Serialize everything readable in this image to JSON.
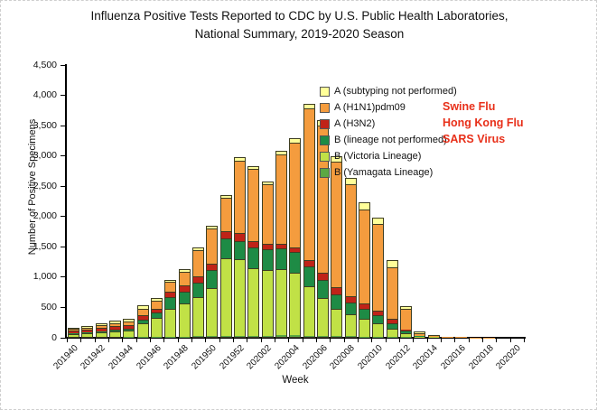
{
  "window": {
    "background": "#ffffff",
    "border_color": "#cfcfcf"
  },
  "title": {
    "line1": "Influenza Positive Tests Reported to CDC by U.S. Public Health Laboratories,",
    "line2": "National Summary, 2019-2020 Season"
  },
  "chart_data": {
    "type": "bar",
    "stacked": true,
    "title": "Influenza Positive Tests Reported to CDC by U.S. Public Health Laboratories, National Summary, 2019-2020 Season",
    "xlabel": "Week",
    "ylabel": "Number of Positive Specimens",
    "ylim": [
      0,
      4500
    ],
    "y_tick_step": 500,
    "y_tick_labels": [
      "0",
      "500",
      "1,000",
      "1,500",
      "2,000",
      "2,500",
      "3,000",
      "3,500",
      "4,000",
      "4,500"
    ],
    "grid": false,
    "legend_position": "inside-top-right",
    "categories": [
      "201940",
      "201941",
      "201942",
      "201943",
      "201944",
      "201945",
      "201946",
      "201947",
      "201948",
      "201949",
      "201950",
      "201951",
      "201952",
      "202001",
      "202002",
      "202003",
      "202004",
      "202005",
      "202006",
      "202007",
      "202008",
      "202009",
      "202010",
      "202011",
      "202012",
      "202013",
      "202014",
      "202015",
      "202016",
      "202017",
      "202018",
      "202019",
      "202020"
    ],
    "x_tick_label_every": 2,
    "x_tick_labels_shown": [
      "201940",
      "201942",
      "201944",
      "201946",
      "201948",
      "201950",
      "201952",
      "202002",
      "202004",
      "202006",
      "202008",
      "202010",
      "202012",
      "202014",
      "202016",
      "202018",
      "202020"
    ],
    "series": [
      {
        "name": "B (Yamagata Lineage)",
        "color": "#5BA843",
        "values": [
          0,
          0,
          0,
          0,
          5,
          5,
          5,
          5,
          5,
          10,
          10,
          15,
          20,
          20,
          20,
          25,
          25,
          20,
          15,
          10,
          10,
          5,
          5,
          5,
          3,
          2,
          0,
          0,
          0,
          0,
          0,
          0,
          0
        ]
      },
      {
        "name": "B (Victoria Lineage)",
        "color": "#C1E146",
        "values": [
          55,
          65,
          85,
          100,
          115,
          240,
          325,
          475,
          565,
          660,
          810,
          1300,
          1270,
          1120,
          1095,
          1100,
          1040,
          820,
          625,
          455,
          360,
          290,
          215,
          140,
          60,
          10,
          5,
          2,
          1,
          0,
          0,
          0,
          0
        ]
      },
      {
        "name": "B (lineage not performed)",
        "color": "#1E8B45",
        "values": [
          20,
          25,
          25,
          30,
          35,
          60,
          85,
          195,
          200,
          250,
          300,
          325,
          310,
          350,
          340,
          350,
          350,
          325,
          300,
          250,
          210,
          170,
          150,
          90,
          40,
          8,
          3,
          1,
          1,
          0,
          0,
          0,
          0
        ]
      },
      {
        "name": "A (H3N2)",
        "color": "#C02318",
        "values": [
          50,
          55,
          60,
          65,
          65,
          75,
          65,
          90,
          95,
          100,
          105,
          125,
          135,
          100,
          100,
          75,
          75,
          110,
          125,
          110,
          105,
          100,
          75,
          75,
          22,
          10,
          4,
          2,
          1,
          0,
          0,
          0,
          0
        ]
      },
      {
        "name": "A (H1N1)pdm09",
        "color": "#F49C3E",
        "values": [
          30,
          35,
          45,
          55,
          60,
          115,
          140,
          170,
          235,
          440,
          590,
          565,
          1195,
          1205,
          995,
          1485,
          1750,
          2525,
          2455,
          2095,
          1860,
          1570,
          1440,
          870,
          370,
          65,
          25,
          14,
          7,
          5,
          3,
          2,
          2
        ]
      },
      {
        "name": "A (subtyping not performed)",
        "color": "#FFFF99",
        "values": [
          15,
          20,
          25,
          30,
          30,
          35,
          30,
          25,
          30,
          30,
          35,
          30,
          45,
          40,
          35,
          50,
          55,
          60,
          65,
          75,
          90,
          100,
          100,
          100,
          20,
          5,
          3,
          1,
          0,
          0,
          0,
          0,
          0
        ]
      }
    ],
    "totals": [
      170,
      200,
      240,
      280,
      310,
      530,
      650,
      960,
      1130,
      1490,
      1850,
      2360,
      2975,
      2835,
      2585,
      3085,
      3295,
      3860,
      3585,
      2995,
      2635,
      2235,
      1985,
      1280,
      515,
      100,
      40,
      20,
      10,
      5,
      3,
      2,
      2
    ],
    "legend": {
      "entries": [
        {
          "label": "A (subtyping not performed)",
          "color": "#FFFF99",
          "annotation": ""
        },
        {
          "label": "A (H1N1)pdm09",
          "color": "#F49C3E",
          "annotation": "Swine Flu"
        },
        {
          "label": "A (H3N2)",
          "color": "#C02318",
          "annotation": "Hong Kong Flu"
        },
        {
          "label": "B (lineage not performed)",
          "color": "#1E8B45",
          "annotation": "SARS Virus"
        },
        {
          "label": "B (Victoria Lineage)",
          "color": "#C1E146",
          "annotation": ""
        },
        {
          "label": "B (Yamagata Lineage)",
          "color": "#5BA843",
          "annotation": ""
        }
      ],
      "annotation_color": "#E8301A"
    }
  },
  "layout_colors": {
    "axis": "#000000",
    "text": "#111111",
    "bar_outline": "#3e3e23"
  }
}
